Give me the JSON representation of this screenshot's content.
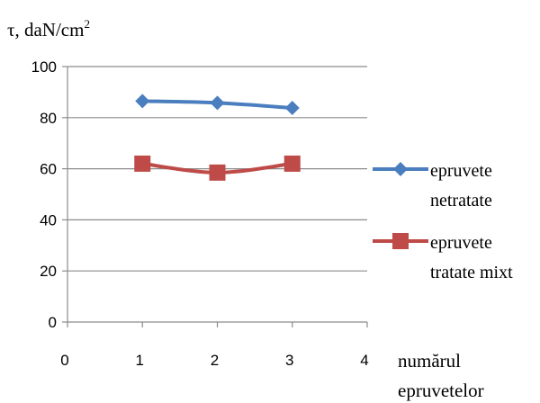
{
  "chart_data": {
    "type": "line",
    "ylabel": {
      "symbol": "τ",
      "text": ", daN/cm",
      "superscript": "2"
    },
    "xlabel": [
      "numărul",
      "epruvetelor"
    ],
    "xlim": [
      0,
      4
    ],
    "ylim": [
      0,
      100
    ],
    "xticks": [
      "0",
      "1",
      "2",
      "3",
      "4"
    ],
    "yticks": [
      "0",
      "20",
      "40",
      "60",
      "80",
      "100"
    ],
    "grid": "horizontal",
    "legend_position": "right",
    "x": [
      1,
      2,
      3
    ],
    "series": [
      {
        "name": [
          "epruvete",
          "netratate"
        ],
        "values": [
          86.5,
          85.8,
          83.8
        ],
        "color": "#4a7ebf",
        "marker": "diamond"
      },
      {
        "name": [
          "epruvete",
          "tratate mixt"
        ],
        "values": [
          62,
          58.5,
          62
        ],
        "color": "#be4b48",
        "marker": "square"
      }
    ]
  }
}
